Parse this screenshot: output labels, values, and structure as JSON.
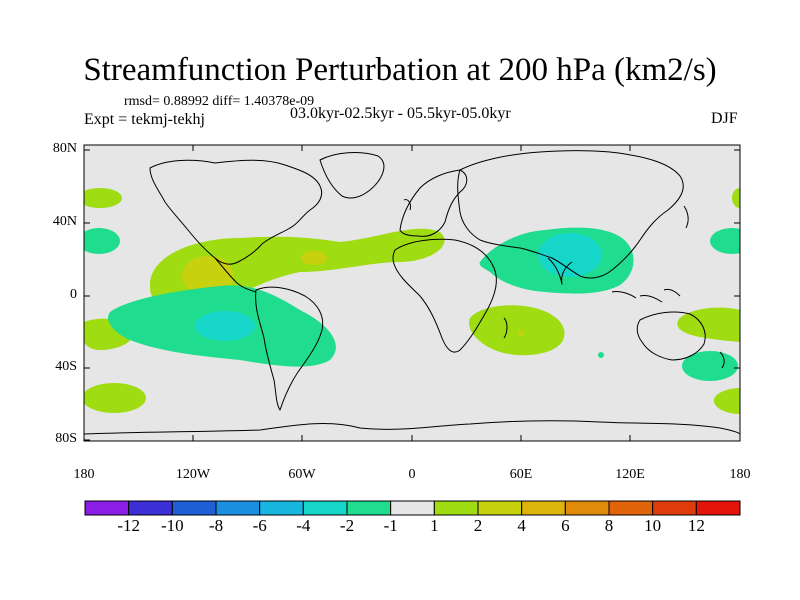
{
  "title": "Streamfunction Perturbation at 200 hPa (km2/s)",
  "stats": "rmsd= 0.88992 diff= 1.40378e-09",
  "expt": "Expt = tekmj-tekhj",
  "period": "03.0kyr-02.5kyr - 05.5kyr-05.0kyr",
  "season": "DJF",
  "lat_labels": [
    "80N",
    "40N",
    "0",
    "40S",
    "80S"
  ],
  "lon_labels": [
    "180",
    "120W",
    "60W",
    "0",
    "60E",
    "120E",
    "180"
  ],
  "colorbar": {
    "labels": [
      "-12",
      "-10",
      "-8",
      "-6",
      "-4",
      "-2",
      "-1",
      "1",
      "2",
      "4",
      "6",
      "8",
      "10",
      "12"
    ],
    "colors": [
      "#8c1de6",
      "#3c2fd8",
      "#1f5fd6",
      "#1b8ee0",
      "#17b6e0",
      "#15d6c8",
      "#20dc8f",
      "#e6e6e6",
      "#9fdc12",
      "#c8d10e",
      "#dcb40c",
      "#e08c0a",
      "#e2640a",
      "#e03c0a",
      "#e4140a"
    ]
  },
  "background_color": "#e6e6e6"
}
